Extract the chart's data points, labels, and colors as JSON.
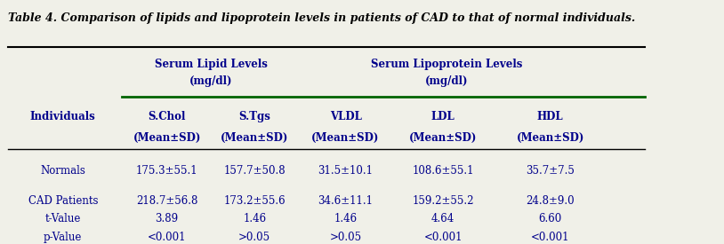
{
  "title": "Table 4. Comparison of lipids and lipoprotein levels in patients of CAD to that of normal individuals.",
  "bg_color": "#f0f0e8",
  "header_group1": "Serum Lipid Levels\n(mg/dl)",
  "header_group2": "Serum Lipoprotein Levels\n(mg/dl)",
  "col_headers": [
    "Individuals",
    "S.Chol\n(Mean±SD)",
    "S.Tgs\n(Mean±SD)",
    "VLDL\n(Mean±SD)",
    "LDL\n(Mean±SD)",
    "HDL\n(Mean±SD)"
  ],
  "rows": [
    [
      "Normals",
      "175.3±55.1",
      "157.7±50.8",
      "31.5±10.1",
      "108.6±55.1",
      "35.7±7.5"
    ],
    [
      "CAD Patients",
      "218.7±56.8",
      "173.2±55.6",
      "34.6±11.1",
      "159.2±55.2",
      "24.8±9.0"
    ],
    [
      "t-Value",
      "3.89",
      "1.46",
      "1.46",
      "4.64",
      "6.60"
    ],
    [
      "p-Value",
      "<0.001",
      ">0.05",
      ">0.05",
      "<0.001",
      "<0.001"
    ]
  ],
  "text_color": "#00008B",
  "title_color": "#000000",
  "line_color_dark": "#000000",
  "line_color_green": "#006400",
  "font_size_title": 9,
  "font_size_header": 8.5,
  "font_size_data": 8.5
}
